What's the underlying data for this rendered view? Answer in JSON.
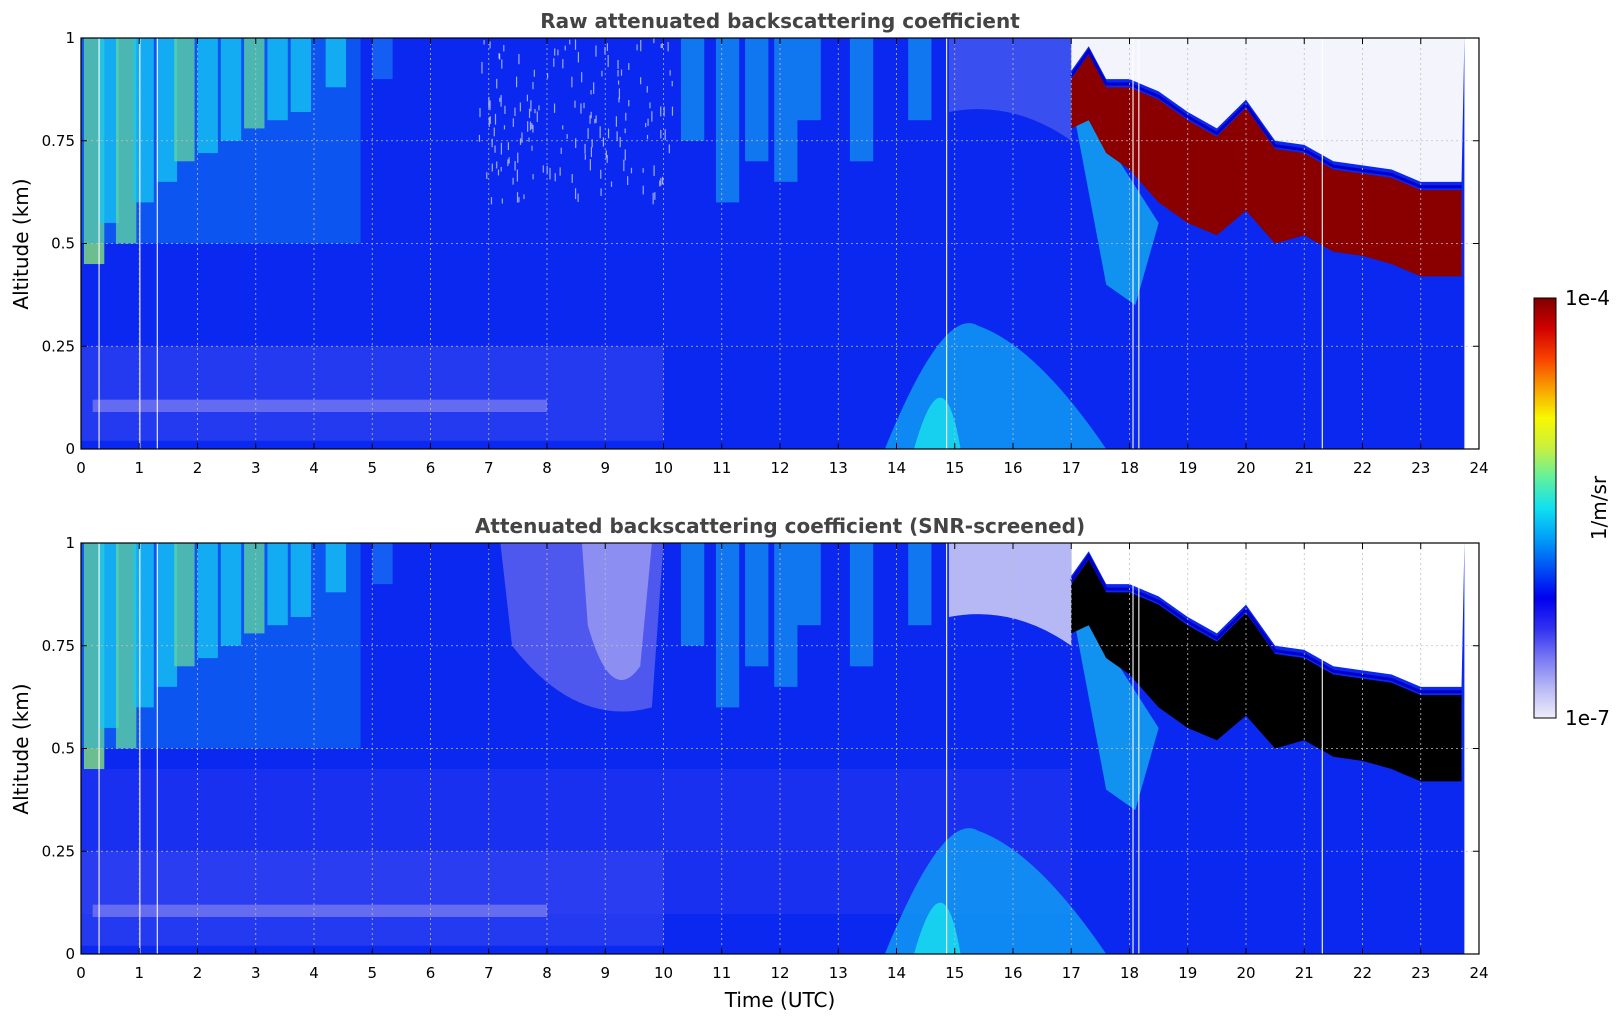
{
  "colors": {
    "background_light": "#e8e8fa",
    "blue": "#0a28f0",
    "screen_blue": "#2838f2",
    "cyan": "#18d8f0",
    "green": "#8ef070",
    "yellow": "#f0f020",
    "red": "#e82000",
    "darkred": "#8a0000",
    "black": "#000000",
    "grid": "#c0c0c0"
  },
  "colorbar": {
    "max_label": "1e-4",
    "min_label": "1e-7",
    "unit_label": "1/m/sr",
    "stops": [
      "#eeeefa",
      "#b8b8f6",
      "#7878f4",
      "#3030f0",
      "#0000f0",
      "#0050f4",
      "#00a0f8",
      "#10e0f0",
      "#60f0a0",
      "#c8f040",
      "#f8f800",
      "#f8a000",
      "#f84000",
      "#d00000",
      "#800000"
    ]
  },
  "chart_data": [
    {
      "type": "heatmap",
      "title": "Raw attenuated backscattering coefficient",
      "xlabel": "",
      "ylabel": "Altitude (km)",
      "xlim": [
        0,
        24
      ],
      "ylim": [
        0,
        1
      ],
      "x_ticks": [
        0,
        1,
        2,
        3,
        4,
        5,
        6,
        7,
        8,
        9,
        10,
        11,
        12,
        13,
        14,
        15,
        16,
        17,
        18,
        19,
        20,
        21,
        22,
        23,
        24
      ],
      "y_ticks": [
        0,
        0.25,
        0.5,
        0.75,
        1
      ],
      "y_tick_labels": [
        "0",
        "0.25",
        "0.5",
        "0.75",
        "1"
      ],
      "grid": true,
      "colorscale_log_range": [
        1e-07,
        0.0001
      ],
      "cloud_top_km": {
        "x": [
          17.0,
          17.3,
          17.6,
          18.0,
          18.5,
          19.0,
          19.5,
          20.0,
          20.5,
          21.0,
          21.5,
          22.0,
          22.5,
          23.0,
          23.7
        ],
        "y": [
          0.9,
          0.96,
          0.88,
          0.88,
          0.85,
          0.8,
          0.76,
          0.83,
          0.73,
          0.72,
          0.68,
          0.67,
          0.66,
          0.63,
          0.63
        ]
      },
      "cloud_base_km": {
        "x": [
          17.0,
          17.3,
          17.6,
          18.0,
          18.5,
          19.0,
          19.5,
          20.0,
          20.5,
          21.0,
          21.5,
          22.0,
          22.5,
          23.0,
          23.7
        ],
        "y": [
          0.78,
          0.8,
          0.72,
          0.68,
          0.6,
          0.55,
          0.52,
          0.58,
          0.5,
          0.52,
          0.48,
          0.47,
          0.45,
          0.42,
          0.42
        ]
      },
      "screened": false
    },
    {
      "type": "heatmap",
      "title": "Attenuated backscattering coefficient (SNR-screened)",
      "xlabel": "Time (UTC)",
      "ylabel": "Altitude (km)",
      "xlim": [
        0,
        24
      ],
      "ylim": [
        0,
        1
      ],
      "x_ticks": [
        0,
        1,
        2,
        3,
        4,
        5,
        6,
        7,
        8,
        9,
        10,
        11,
        12,
        13,
        14,
        15,
        16,
        17,
        18,
        19,
        20,
        21,
        22,
        23,
        24
      ],
      "y_ticks": [
        0,
        0.25,
        0.5,
        0.75,
        1
      ],
      "y_tick_labels": [
        "0",
        "0.25",
        "0.5",
        "0.75",
        "1"
      ],
      "grid": true,
      "colorscale_log_range": [
        1e-07,
        0.0001
      ],
      "cloud_top_km": {
        "x": [
          17.0,
          17.3,
          17.6,
          18.0,
          18.5,
          19.0,
          19.5,
          20.0,
          20.5,
          21.0,
          21.5,
          22.0,
          22.5,
          23.0,
          23.7
        ],
        "y": [
          0.9,
          0.96,
          0.88,
          0.88,
          0.85,
          0.8,
          0.76,
          0.83,
          0.73,
          0.72,
          0.68,
          0.67,
          0.66,
          0.63,
          0.63
        ]
      },
      "cloud_base_km": {
        "x": [
          17.0,
          17.3,
          17.6,
          18.0,
          18.5,
          19.0,
          19.5,
          20.0,
          20.5,
          21.0,
          21.5,
          22.0,
          22.5,
          23.0,
          23.7
        ],
        "y": [
          0.78,
          0.8,
          0.72,
          0.68,
          0.6,
          0.55,
          0.52,
          0.58,
          0.5,
          0.52,
          0.48,
          0.47,
          0.45,
          0.42,
          0.42
        ]
      },
      "screened": true
    }
  ]
}
